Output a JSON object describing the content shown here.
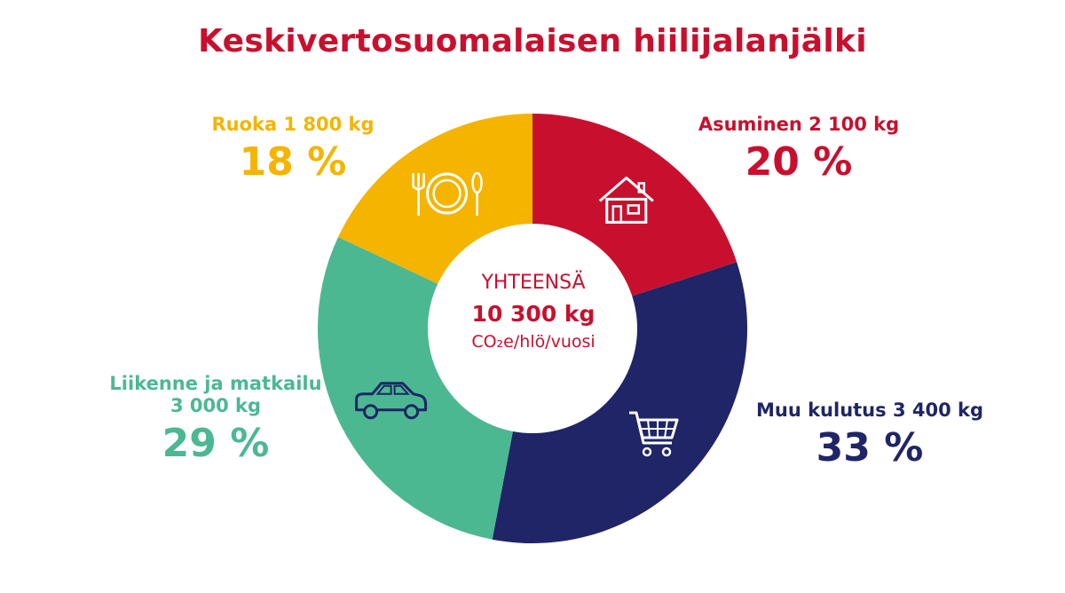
{
  "chart_data": {
    "type": "pie",
    "title": "Keskivertosuomalaisen hiilijalanjälki",
    "slices": [
      {
        "name": "Asuminen 2 100 kg",
        "value": 20,
        "percent_label": "20 %",
        "color": "#c8102e",
        "icon": "house-icon"
      },
      {
        "name": "Muu kulutus 3 400 kg",
        "value": 33,
        "percent_label": "33 %",
        "color": "#1f2566",
        "icon": "shopping-cart-icon"
      },
      {
        "name": "Liikenne ja matkailu 3 000 kg",
        "value": 29,
        "percent_label": "29 %",
        "color": "#4cb891",
        "icon": "car-icon"
      },
      {
        "name": "Ruoka 1 800 kg",
        "value": 18,
        "percent_label": "18 %",
        "color": "#f4b400",
        "icon": "plate-cutlery-icon"
      }
    ],
    "center": {
      "line1": "YHTEENSÄ",
      "line2": "10 300 kg",
      "line3": "CO₂e/hlö/vuosi"
    }
  }
}
